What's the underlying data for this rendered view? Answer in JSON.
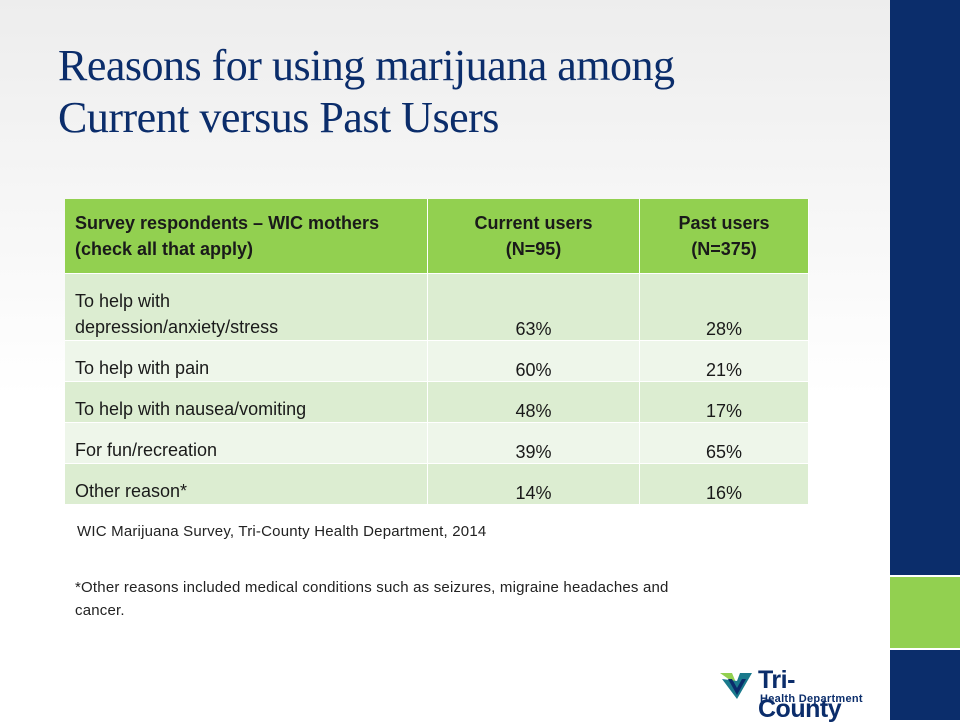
{
  "slide": {
    "title_line1": "Reasons for using marijuana among",
    "title_line2": "Current versus Past Users",
    "source": "WIC Marijuana Survey, Tri-County Health Department, 2014",
    "footnote": "*Other reasons included medical conditions such as seizures, migraine headaches and cancer."
  },
  "table": {
    "header": {
      "col0": "Survey respondents – WIC mothers (check all that apply)",
      "col1_line1": "Current users",
      "col1_line2": "(N=95)",
      "col2_line1": "Past users",
      "col2_line2": "(N=375)"
    },
    "rows": [
      {
        "reason_line1": "To help with",
        "reason_line2": "depression/anxiety/stress",
        "current": "63%",
        "past": "28%"
      },
      {
        "reason": "To help with pain",
        "current": "60%",
        "past": "21%"
      },
      {
        "reason": "To help with nausea/vomiting",
        "current": "48%",
        "past": "17%"
      },
      {
        "reason": "For fun/recreation",
        "current": "39%",
        "past": "65%"
      },
      {
        "reason": "Other reason*",
        "current": "14%",
        "past": "16%"
      }
    ]
  },
  "logo": {
    "name": "Tri-County",
    "subtitle": "Health Department"
  },
  "colors": {
    "navy": "#0b2d6b",
    "green": "#92d050",
    "row_dark": "#dcedd1",
    "row_light": "#eef6ea"
  }
}
